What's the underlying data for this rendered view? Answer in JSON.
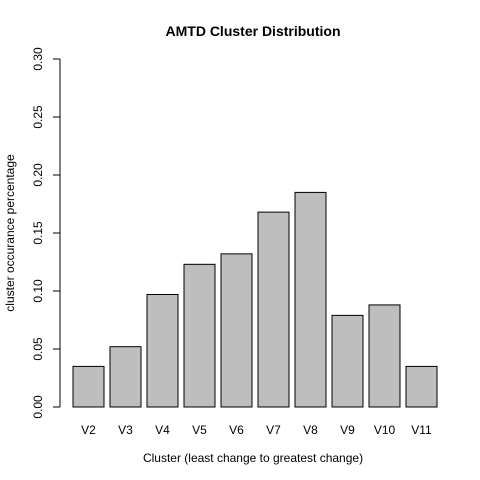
{
  "chart_data": {
    "type": "bar",
    "title": "AMTD Cluster Distribution",
    "xlabel": "Cluster (least change to greatest change)",
    "ylabel": "cluster occurance percentage",
    "categories": [
      "V2",
      "V3",
      "V4",
      "V5",
      "V6",
      "V7",
      "V8",
      "V9",
      "V10",
      "V11"
    ],
    "values": [
      0.035,
      0.052,
      0.097,
      0.123,
      0.132,
      0.168,
      0.185,
      0.079,
      0.088,
      0.035
    ],
    "ylim": [
      0,
      0.3
    ],
    "yticks": [
      "0.00",
      "0.05",
      "0.10",
      "0.15",
      "0.20",
      "0.25",
      "0.30"
    ],
    "grid": false,
    "colors": {
      "bar_fill": "#bebebe",
      "bar_stroke": "#000000"
    }
  }
}
